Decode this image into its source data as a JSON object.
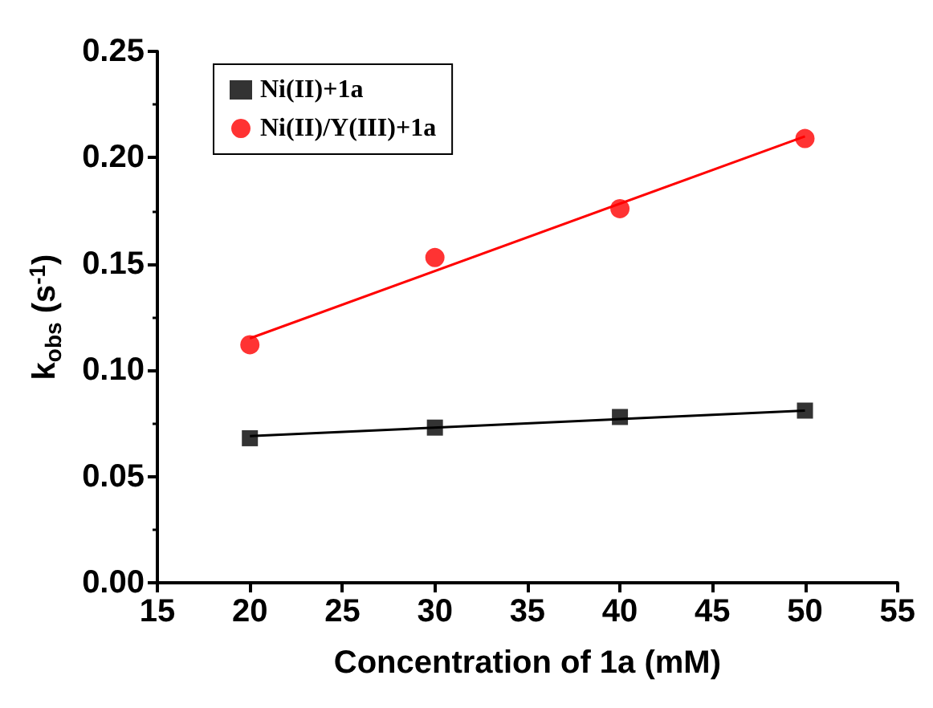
{
  "chart_data": {
    "type": "scatter",
    "xlabel": "Concentration of 1a (mM)",
    "ylabel": "k$_{obs}$ (s$^{-1}$)",
    "xlim": [
      15,
      55
    ],
    "xticks": [
      15,
      20,
      25,
      30,
      35,
      40,
      45,
      50,
      55
    ],
    "ylim": [
      0,
      0.25
    ],
    "yticks": [
      {
        "value": 0,
        "label": "0.00"
      },
      0.05,
      {
        "value": 0.1,
        "label": "0.10"
      },
      0.15,
      {
        "value": 0.2,
        "label": "0.20"
      },
      0.25
    ],
    "grid": false,
    "legend": "top left",
    "series": [
      {
        "name": "Ni(II)+1a",
        "marker": "square",
        "color": "#000000",
        "x": [
          20,
          30,
          40,
          50
        ],
        "values": [
          0.068,
          0.073,
          0.078,
          0.081
        ]
      },
      {
        "name": "Ni(II)/Y(III)+1a",
        "marker": "circle",
        "color": "#ff0000",
        "x": [
          20,
          30,
          40,
          50
        ],
        "values": [
          0.112,
          0.153,
          0.176,
          0.209
        ]
      },
      {
        "type": "line",
        "color": "#000000",
        "line_style": "solid",
        "x": [
          20,
          50
        ],
        "values": [
          0.069,
          0.081
        ]
      },
      {
        "type": "line",
        "color": "#ff0000",
        "line_style": "solid",
        "x": [
          20,
          50
        ],
        "values": [
          0.115,
          0.21
        ]
      }
    ]
  }
}
